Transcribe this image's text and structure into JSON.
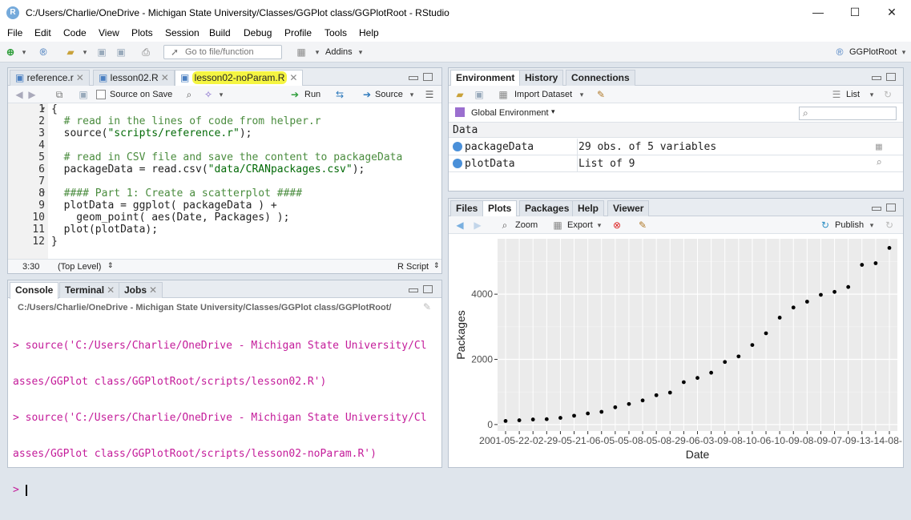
{
  "window": {
    "title": "C:/Users/Charlie/OneDrive - Michigan State University/Classes/GGPlot class/GGPlotRoot - RStudio",
    "app_icon_letter": "R",
    "minimize": "—",
    "maximize": "☐",
    "close": "✕"
  },
  "menu": [
    "File",
    "Edit",
    "Code",
    "View",
    "Plots",
    "Session",
    "Build",
    "Debug",
    "Profile",
    "Tools",
    "Help"
  ],
  "toolbar": {
    "goto_placeholder": "Go to file/function",
    "addins_label": "Addins",
    "project_label": "GGPlotRoot"
  },
  "editor": {
    "tabs": [
      {
        "label": "reference.r",
        "active": false
      },
      {
        "label": "lesson02.R",
        "active": false
      },
      {
        "label": "lesson02-noParam.R",
        "active": true
      }
    ],
    "source_on_save": "Source on Save",
    "run_label": "Run",
    "source_label": "Source",
    "line_numbers": [
      "1",
      "2",
      "3",
      "4",
      "5",
      "6",
      "7",
      "8",
      "9",
      "10",
      "11",
      "12"
    ],
    "status_position": "3:30",
    "status_scope": "(Top Level)",
    "status_filetype": "R Script"
  },
  "console": {
    "tabs": [
      "Console",
      "Terminal",
      "Jobs"
    ],
    "path": "C:/Users/Charlie/OneDrive - Michigan State University/Classes/GGPlot class/GGPlotRoot/",
    "lines": [
      "> source('C:/Users/Charlie/OneDrive - Michigan State University/Cl",
      "asses/GGPlot class/GGPlotRoot/scripts/lesson02.R')",
      "> source('C:/Users/Charlie/OneDrive - Michigan State University/Cl",
      "asses/GGPlot class/GGPlotRoot/scripts/lesson02-noParam.R')",
      "> "
    ]
  },
  "environment": {
    "tabs": [
      "Environment",
      "History",
      "Connections"
    ],
    "import_label": "Import Dataset",
    "list_label": "List",
    "scope_label": "Global Environment",
    "section_header": "Data",
    "rows": [
      {
        "name": "packageData",
        "value": "29 obs. of 5 variables"
      },
      {
        "name": "plotData",
        "value": "List of 9"
      }
    ]
  },
  "plots": {
    "tabs": [
      "Files",
      "Plots",
      "Packages",
      "Help",
      "Viewer"
    ],
    "zoom_label": "Zoom",
    "export_label": "Export",
    "publish_label": "Publish"
  },
  "chart_data": {
    "type": "scatter",
    "title": "",
    "xlabel": "Date",
    "ylabel": "Packages",
    "yticks": [
      "0",
      "2000",
      "4000"
    ],
    "ylim": [
      -200,
      5700
    ],
    "x_tick_overlap_text": "2001-05-22-02-29-05-21-06-05-05-08-05-08-29-06-03-09-08-10-06-10-09-08-09-07-09-13-14-08-",
    "grid": true,
    "background": "#ebebeb",
    "point_color": "#000000",
    "values": [
      110,
      130,
      155,
      165,
      205,
      270,
      340,
      390,
      530,
      630,
      740,
      900,
      980,
      1300,
      1430,
      1590,
      1920,
      2090,
      2440,
      2800,
      3280,
      3590,
      3770,
      3980,
      4070,
      4220,
      4900,
      4950,
      5420
    ]
  }
}
